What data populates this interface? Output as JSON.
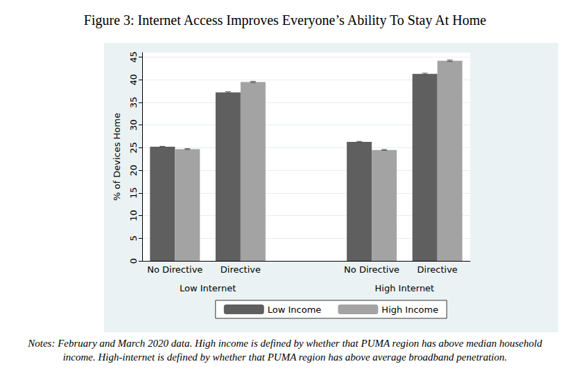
{
  "chart_data": {
    "type": "bar",
    "title": "Figure 3: Internet Access Improves Everyone’s Ability To Stay At Home",
    "notes": "Notes: February and March 2020 data. High income is defined by whether that PUMA region has above median household income. High-internet is defined by whether that PUMA region has above average broadband penetration.",
    "y_label": "% of Devices Home",
    "categories": [
      "No Directive",
      "Directive",
      null,
      "No Directive",
      "Directive"
    ],
    "group_labels": [
      "Low Internet",
      "High Internet"
    ],
    "series": [
      {
        "name": "Low Income",
        "color": "#5f5f5f",
        "values": [
          25.2,
          37.2,
          null,
          26.3,
          41.3
        ],
        "errors": [
          0.1,
          0.15,
          null,
          0.1,
          0.15
        ]
      },
      {
        "name": "High Income",
        "color": "#a3a3a3",
        "values": [
          24.7,
          39.5,
          null,
          24.5,
          44.2
        ],
        "errors": [
          0.1,
          0.15,
          null,
          0.1,
          0.15
        ]
      }
    ],
    "ylim": [
      0,
      46
    ],
    "yticks": [
      0,
      5,
      10,
      15,
      20,
      25,
      30,
      35,
      40,
      45
    ],
    "grid": true,
    "legend": "bottom"
  }
}
